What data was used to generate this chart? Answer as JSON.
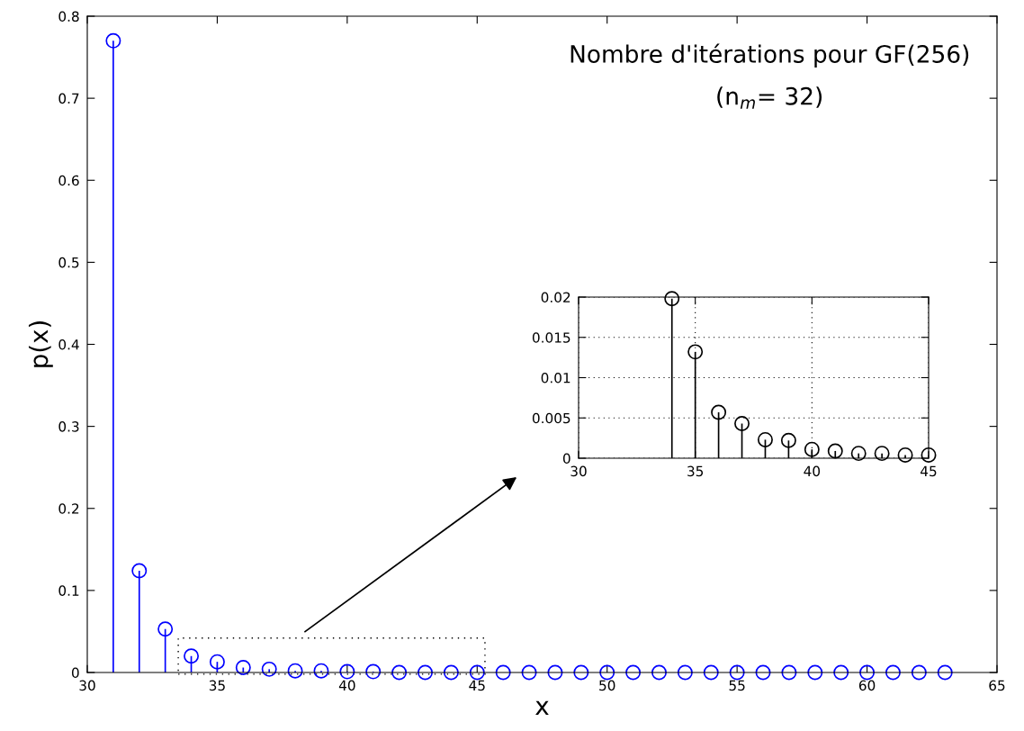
{
  "chart_data": [
    {
      "type": "lollipop",
      "title": "Nombre d'itérations pour GF(256)",
      "subtitle": "(n$_{m}$= 32)",
      "xlabel": "x",
      "ylabel": "p(x)",
      "x": [
        31,
        32,
        33,
        34,
        35,
        36,
        37,
        38,
        39,
        40,
        41,
        42,
        43,
        44,
        45,
        46,
        47,
        48,
        49,
        50,
        51,
        52,
        53,
        54,
        55,
        56,
        57,
        58,
        59,
        60,
        61,
        62,
        63
      ],
      "series": [
        {
          "color": "#0000ff",
          "values": [
            0.77,
            0.124,
            0.053,
            0.02,
            0.013,
            0.006,
            0.004,
            0.002,
            0.002,
            0.001,
            0.001,
            0,
            0,
            0,
            0,
            0,
            0,
            0,
            0,
            0,
            0,
            0,
            0,
            0,
            0,
            0,
            0,
            0,
            0,
            0,
            0,
            0,
            0
          ]
        }
      ],
      "xlim": [
        30,
        65
      ],
      "xticks": [
        30,
        35,
        40,
        45,
        50,
        55,
        60,
        65
      ],
      "ylim": [
        0,
        0.8
      ],
      "yticks": [
        0,
        0.1,
        0.2,
        0.3,
        0.4,
        0.5,
        0.6,
        0.7,
        0.8
      ],
      "marker": "circle",
      "grid": false
    },
    {
      "type": "lollipop",
      "x": [
        34,
        35,
        36,
        37,
        38,
        39,
        40,
        41,
        42,
        43,
        44,
        45
      ],
      "series": [
        {
          "color": "#000000",
          "values": [
            0.0198,
            0.0132,
            0.0057,
            0.0043,
            0.0023,
            0.0022,
            0.0011,
            0.0009,
            0.0006,
            0.0006,
            0.0004,
            0.0004
          ]
        }
      ],
      "xlim": [
        30,
        45
      ],
      "xticks": [
        30,
        35,
        40,
        45
      ],
      "ylim": [
        0,
        0.02
      ],
      "yticks": [
        0,
        0.005,
        0.01,
        0.015,
        0.02
      ],
      "marker": "circle",
      "grid": true
    }
  ]
}
